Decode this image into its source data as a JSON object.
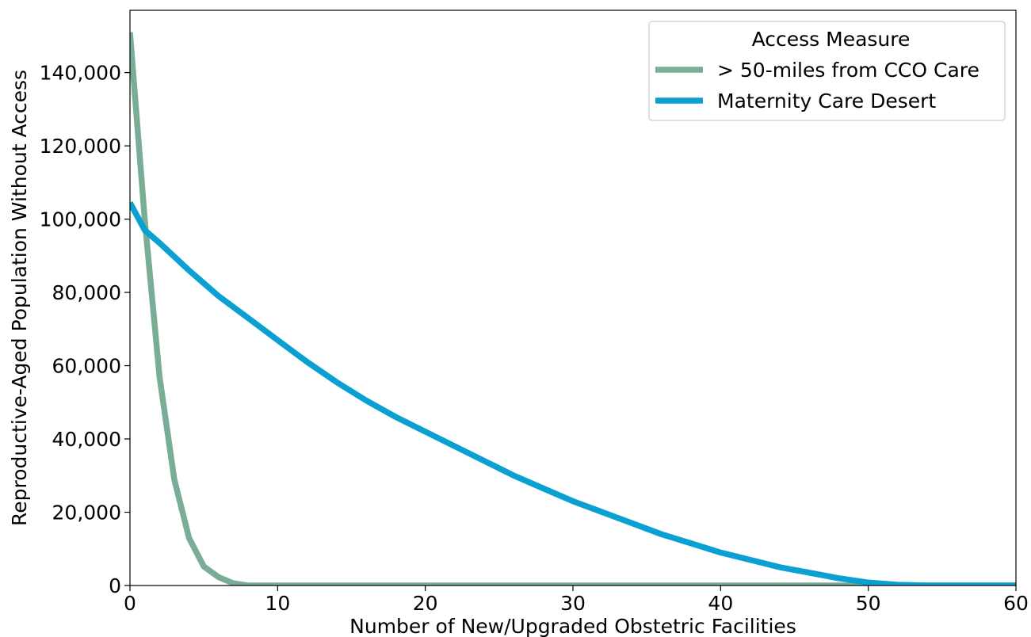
{
  "chart_data": {
    "type": "line",
    "xlabel": "Number of New/Upgraded Obstetric Facilities",
    "ylabel": "Reproductive-Aged Population Without Access",
    "xlim": [
      0,
      60
    ],
    "ylim": [
      0,
      157000
    ],
    "xticks": [
      0,
      10,
      20,
      30,
      40,
      50,
      60
    ],
    "yticks": [
      0,
      20000,
      40000,
      60000,
      80000,
      100000,
      120000,
      140000
    ],
    "ytick_labels": [
      "0",
      "20,000",
      "40,000",
      "60,000",
      "80,000",
      "100,000",
      "120,000",
      "140,000"
    ],
    "grid": false,
    "legend": {
      "title": "Access Measure",
      "placement": "top-right"
    },
    "series": [
      {
        "name": "> 50-miles from CCO Care",
        "color": "#7aad95",
        "x": [
          0,
          1,
          2,
          3,
          4,
          5,
          6,
          7,
          8,
          10,
          20,
          30,
          40,
          50,
          60
        ],
        "y": [
          151000,
          100000,
          57000,
          29000,
          13000,
          5200,
          2300,
          600,
          0,
          0,
          0,
          0,
          0,
          0,
          0
        ]
      },
      {
        "name": "Maternity Care Desert",
        "color": "#0aa0d2",
        "x": [
          0,
          1,
          2,
          4,
          6,
          8,
          10,
          12,
          14,
          16,
          18,
          20,
          22,
          24,
          26,
          28,
          30,
          32,
          34,
          36,
          38,
          40,
          42,
          44,
          46,
          48,
          50,
          52,
          54,
          56,
          58,
          60
        ],
        "y": [
          104500,
          97000,
          93500,
          86000,
          79000,
          73000,
          67000,
          61000,
          55500,
          50500,
          46000,
          42000,
          38000,
          34000,
          30000,
          26500,
          23000,
          20000,
          17000,
          14000,
          11500,
          9000,
          7000,
          5000,
          3500,
          2000,
          800,
          200,
          0,
          0,
          0,
          0
        ]
      }
    ]
  }
}
